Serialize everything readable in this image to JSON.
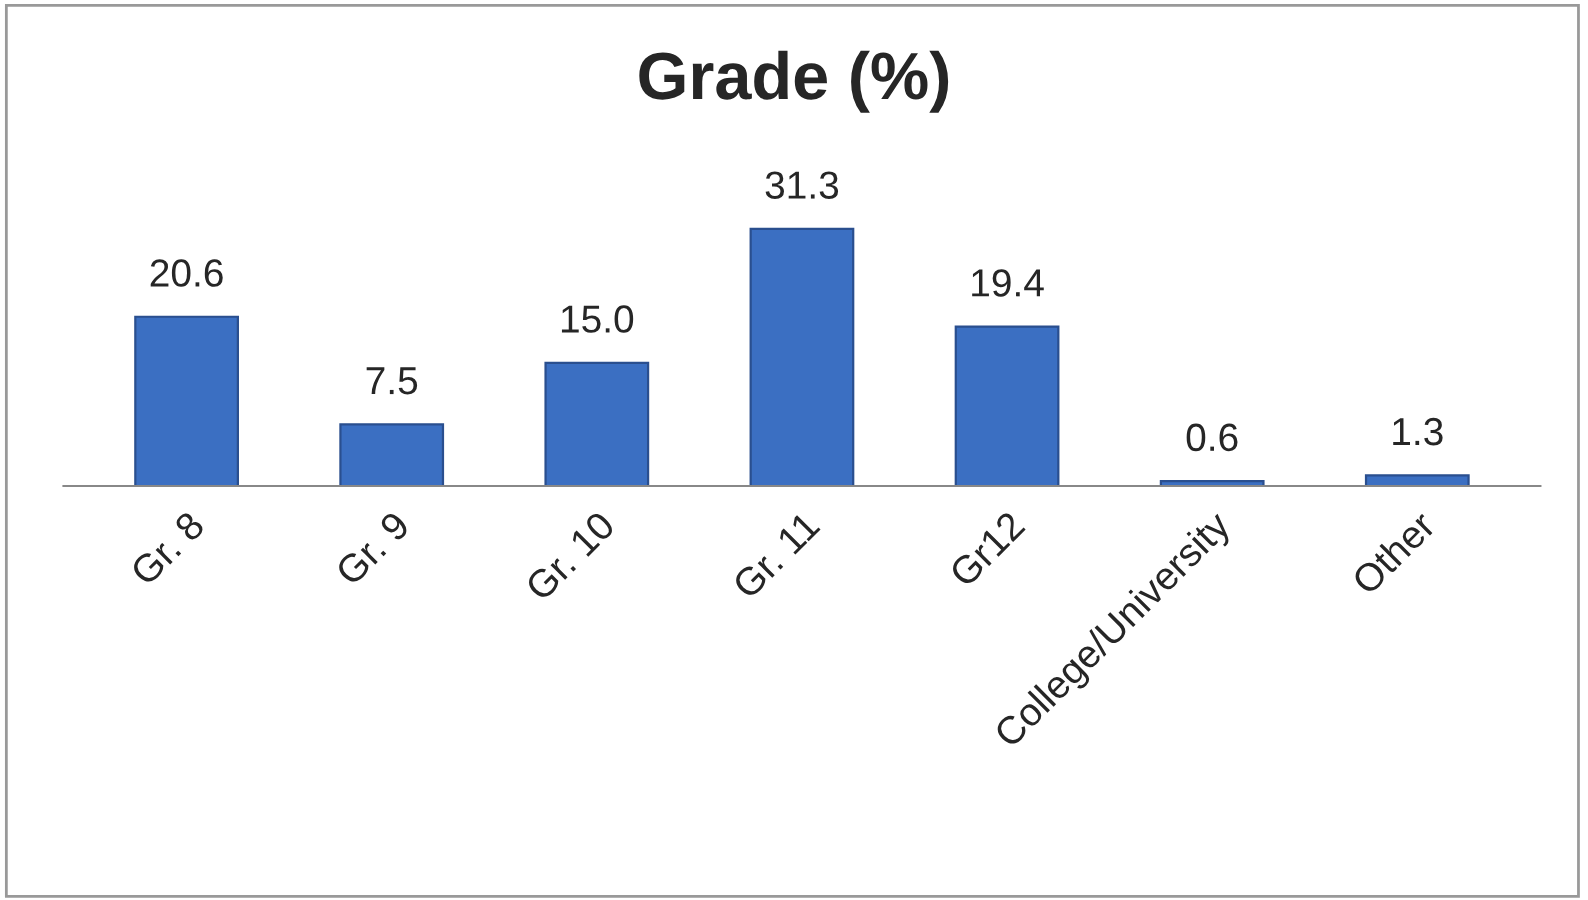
{
  "chart_data": {
    "type": "bar",
    "title": "Grade (%)",
    "categories": [
      "Gr. 8",
      "Gr. 9",
      "Gr. 10",
      "Gr. 11",
      "Gr12",
      "College/University",
      "Other"
    ],
    "values": [
      20.6,
      7.5,
      15.0,
      31.3,
      19.4,
      0.6,
      1.3
    ],
    "value_labels": [
      "20.6",
      "7.5",
      "15.0",
      "31.3",
      "19.4",
      "0.6",
      "1.3"
    ],
    "color": "#3b6fc2",
    "grid": false,
    "legend": false
  }
}
